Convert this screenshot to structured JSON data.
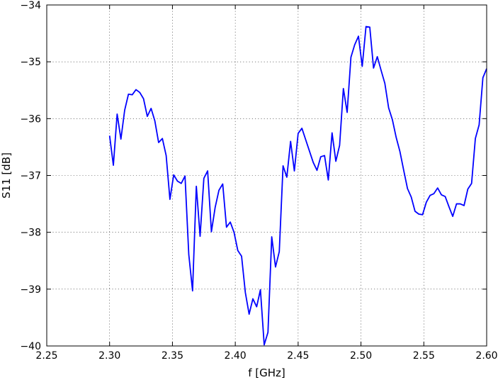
{
  "chart_data": {
    "type": "line",
    "title": "",
    "xlabel": "f [GHz]",
    "ylabel": "S11 [dB]",
    "xlim": [
      2.25,
      2.6
    ],
    "ylim": [
      -40,
      -34
    ],
    "xticks": [
      "2.25",
      "2.30",
      "2.35",
      "2.40",
      "2.45",
      "2.50",
      "2.55",
      "2.60"
    ],
    "yticks": [
      "−34",
      "−35",
      "−36",
      "−37",
      "−38",
      "−39",
      "−40"
    ],
    "grid": true,
    "legend": false,
    "series": [
      {
        "color": "#0000ff",
        "x": [
          2.3,
          2.303,
          2.306,
          2.309,
          2.312,
          2.315,
          2.318,
          2.321,
          2.324,
          2.327,
          2.33,
          2.333,
          2.336,
          2.339,
          2.342,
          2.345,
          2.348,
          2.351,
          2.354,
          2.357,
          2.36,
          2.363,
          2.366,
          2.369,
          2.372,
          2.375,
          2.378,
          2.381,
          2.384,
          2.387,
          2.39,
          2.393,
          2.396,
          2.399,
          2.402,
          2.405,
          2.408,
          2.411,
          2.414,
          2.417,
          2.42,
          2.423,
          2.426,
          2.429,
          2.432,
          2.435,
          2.438,
          2.441,
          2.444,
          2.447,
          2.45,
          2.453,
          2.456,
          2.459,
          2.462,
          2.465,
          2.468,
          2.471,
          2.474,
          2.477,
          2.48,
          2.483,
          2.486,
          2.489,
          2.492,
          2.495,
          2.498,
          2.501,
          2.504,
          2.507,
          2.51,
          2.513,
          2.516,
          2.519,
          2.522,
          2.525,
          2.528,
          2.531,
          2.534,
          2.537,
          2.54,
          2.543,
          2.546,
          2.549,
          2.552,
          2.555,
          2.558,
          2.561,
          2.564,
          2.567,
          2.57,
          2.573,
          2.576,
          2.579,
          2.582,
          2.585,
          2.588,
          2.591,
          2.594,
          2.597,
          2.6
        ],
        "y": [
          -36.3,
          -36.82,
          -35.92,
          -36.36,
          -35.85,
          -35.57,
          -35.58,
          -35.49,
          -35.54,
          -35.65,
          -35.96,
          -35.82,
          -36.04,
          -36.42,
          -36.35,
          -36.65,
          -37.42,
          -36.99,
          -37.1,
          -37.14,
          -37.01,
          -38.39,
          -39.03,
          -37.19,
          -38.07,
          -37.05,
          -36.92,
          -37.99,
          -37.56,
          -37.26,
          -37.15,
          -37.91,
          -37.82,
          -38.0,
          -38.32,
          -38.42,
          -39.06,
          -39.44,
          -39.17,
          -39.31,
          -39.01,
          -39.98,
          -39.76,
          -38.08,
          -38.61,
          -38.34,
          -36.83,
          -37.03,
          -36.4,
          -36.92,
          -36.26,
          -36.17,
          -36.37,
          -36.57,
          -36.77,
          -36.91,
          -36.67,
          -36.65,
          -37.08,
          -36.25,
          -36.75,
          -36.47,
          -35.47,
          -35.89,
          -34.92,
          -34.7,
          -34.55,
          -35.08,
          -34.38,
          -34.39,
          -35.11,
          -34.91,
          -35.15,
          -35.38,
          -35.81,
          -36.02,
          -36.33,
          -36.58,
          -36.91,
          -37.23,
          -37.38,
          -37.63,
          -37.68,
          -37.69,
          -37.47,
          -37.35,
          -37.32,
          -37.22,
          -37.34,
          -37.37,
          -37.55,
          -37.72,
          -37.5,
          -37.5,
          -37.53,
          -37.24,
          -37.14,
          -36.35,
          -36.11,
          -35.28,
          -35.12
        ]
      }
    ]
  }
}
